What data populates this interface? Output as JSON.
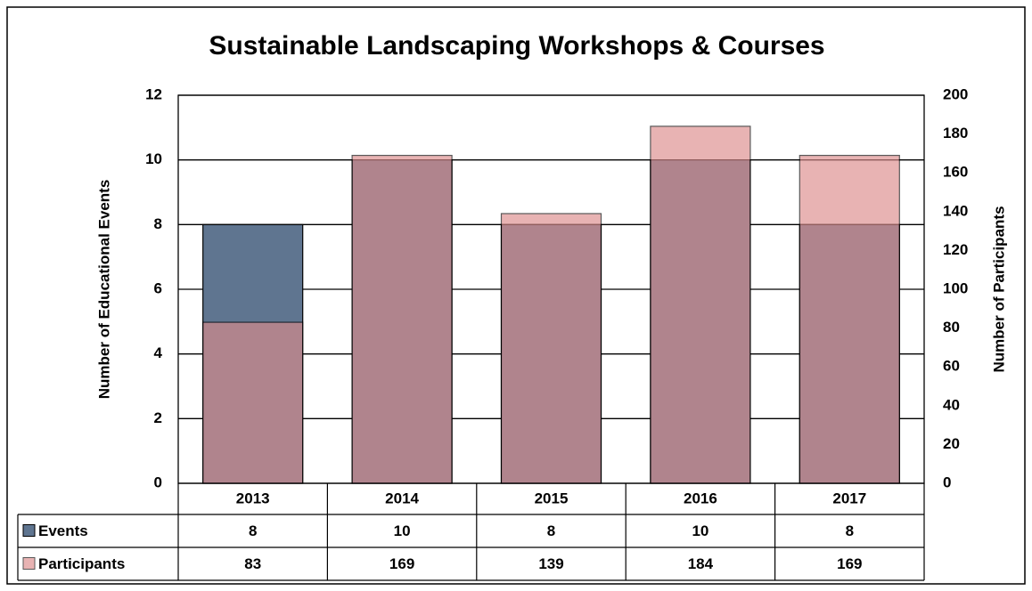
{
  "chart_data": {
    "type": "bar",
    "title": "Sustainable Landscaping Workshops & Courses",
    "y_label": "Number of Educational Events",
    "y2_label": "Number of Participants",
    "categories": [
      "2013",
      "2014",
      "2015",
      "2016",
      "2017"
    ],
    "series": [
      {
        "name": "Events",
        "color": "#5f7590",
        "values": [
          8,
          10,
          8,
          10,
          8
        ]
      },
      {
        "name": "Participants",
        "color": "#dc8c8c",
        "axis": "y2",
        "values": [
          83,
          169,
          139,
          184,
          169
        ]
      }
    ],
    "ylim": [
      0,
      12
    ],
    "yticks": [
      0,
      2,
      4,
      6,
      8,
      10,
      12
    ],
    "y2lim": [
      0,
      200
    ],
    "y2ticks": [
      0,
      20,
      40,
      60,
      80,
      100,
      120,
      140,
      160,
      180,
      200
    ],
    "grid": true,
    "data_table": true
  }
}
